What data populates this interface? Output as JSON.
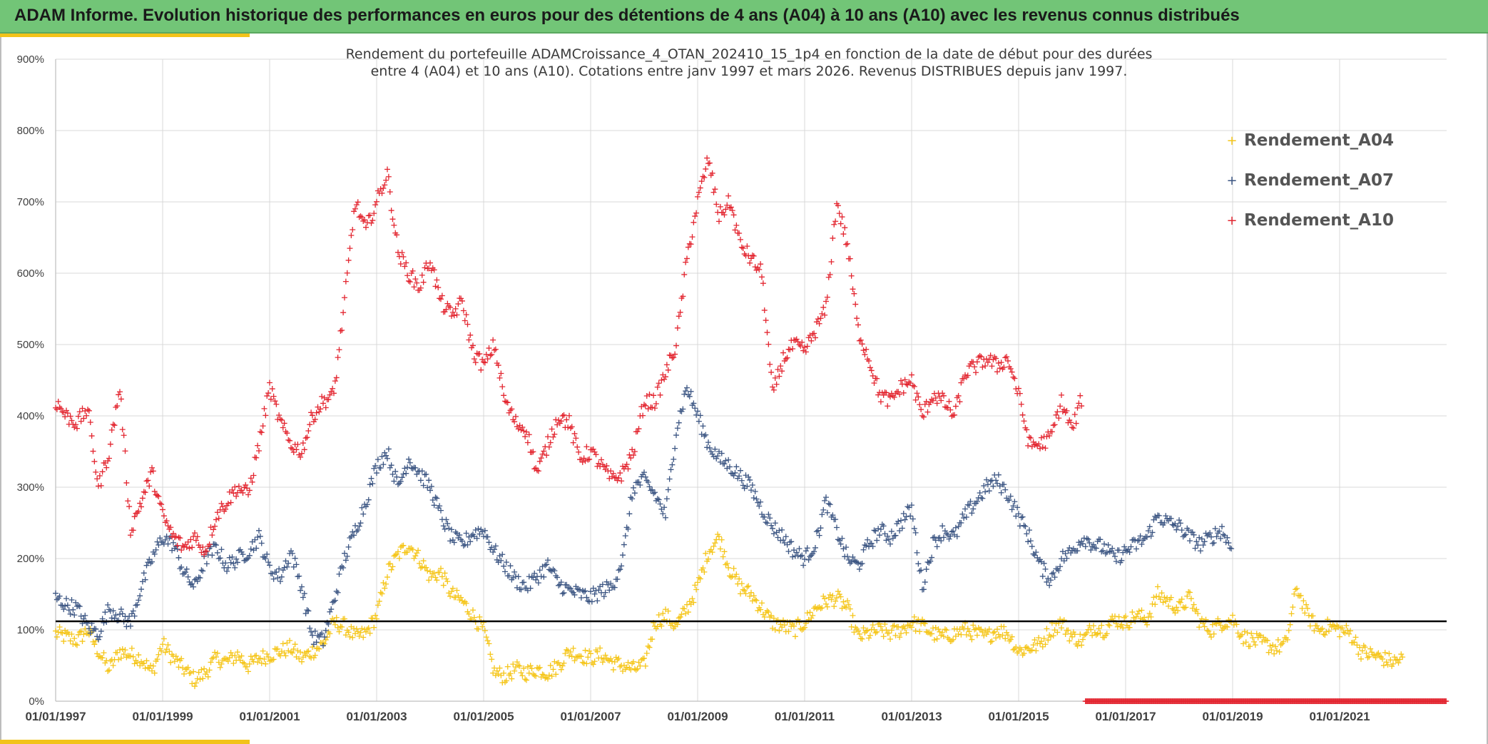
{
  "header": {
    "title": "ADAM Informe. Evolution historique des performances en euros pour des détentions de 4 ans (A04) à 10 ans (A10) avec les revenus connus distribués"
  },
  "chart_data": {
    "type": "scatter",
    "title_lines": [
      "Rendement du portefeuille ADAMCroissance_4_OTAN_202410_15_1p4  en fonction de la date de début pour des durées",
      "entre 4 (A04) et 10 ans (A10). Cotations entre janv 1997 et mars 2026. Revenus DISTRIBUES depuis janv 1997."
    ],
    "xlim": [
      1997.0,
      2023.0
    ],
    "ylim": [
      0,
      900
    ],
    "y_ticks": [
      0,
      100,
      200,
      300,
      400,
      500,
      600,
      700,
      800,
      900
    ],
    "y_tick_labels": [
      "0%",
      "100%",
      "200%",
      "300%",
      "400%",
      "500%",
      "600%",
      "700%",
      "800%",
      "900%"
    ],
    "x_ticks": [
      1997,
      1999,
      2001,
      2003,
      2005,
      2007,
      2009,
      2011,
      2013,
      2015,
      2017,
      2019,
      2021
    ],
    "x_tick_labels": [
      "01/01/1997",
      "01/01/1999",
      "01/01/2001",
      "01/01/2003",
      "01/01/2005",
      "01/01/2007",
      "01/01/2009",
      "01/01/2011",
      "01/01/2013",
      "01/01/2015",
      "01/01/2017",
      "01/01/2019",
      "01/01/2021"
    ],
    "grid": true,
    "reference_line": {
      "y": 112,
      "color": "#000000"
    },
    "legend_position": "top-right",
    "series": [
      {
        "name": "Rendement_A04",
        "color": "#f5c518",
        "x": [
          1997.0,
          1997.2,
          1997.4,
          1997.6,
          1997.8,
          1998.0,
          1998.2,
          1998.4,
          1998.6,
          1998.8,
          1999.0,
          1999.2,
          1999.4,
          1999.6,
          1999.8,
          2000.0,
          2000.2,
          2000.4,
          2000.6,
          2000.8,
          2001.0,
          2001.2,
          2001.4,
          2001.6,
          2001.8,
          2002.0,
          2002.2,
          2002.4,
          2002.6,
          2002.8,
          2003.0,
          2003.2,
          2003.4,
          2003.6,
          2003.8,
          2004.0,
          2004.2,
          2004.4,
          2004.6,
          2004.8,
          2005.0,
          2005.2,
          2005.4,
          2005.6,
          2005.8,
          2006.0,
          2006.2,
          2006.4,
          2006.6,
          2006.8,
          2007.0,
          2007.2,
          2007.4,
          2007.6,
          2007.8,
          2008.0,
          2008.2,
          2008.4,
          2008.6,
          2008.8,
          2009.0,
          2009.2,
          2009.4,
          2009.6,
          2009.8,
          2010.0,
          2010.2,
          2010.4,
          2010.6,
          2010.8,
          2011.0,
          2011.2,
          2011.4,
          2011.6,
          2011.8,
          2012.0,
          2012.2,
          2012.4,
          2012.6,
          2012.8,
          2013.0,
          2013.2,
          2013.4,
          2013.6,
          2013.8,
          2014.0,
          2014.2,
          2014.4,
          2014.6,
          2014.8,
          2015.0,
          2015.2,
          2015.4,
          2015.6,
          2015.8,
          2016.0,
          2016.2,
          2016.4,
          2016.6,
          2016.8,
          2017.0,
          2017.2,
          2017.4,
          2017.6,
          2017.8,
          2018.0,
          2018.2,
          2018.4,
          2018.6,
          2018.8,
          2019.0,
          2019.2,
          2019.4,
          2019.6,
          2019.8,
          2020.0,
          2020.2,
          2020.4,
          2020.6,
          2020.8,
          2021.0,
          2021.2,
          2021.4,
          2021.6,
          2021.8,
          2022.0,
          2022.2
        ],
        "values": [
          95,
          90,
          85,
          100,
          70,
          45,
          70,
          65,
          60,
          40,
          80,
          60,
          45,
          30,
          40,
          60,
          55,
          65,
          50,
          60,
          65,
          70,
          75,
          60,
          70,
          80,
          110,
          105,
          90,
          95,
          120,
          180,
          205,
          220,
          200,
          175,
          180,
          150,
          140,
          120,
          100,
          40,
          35,
          45,
          40,
          45,
          40,
          50,
          70,
          65,
          60,
          65,
          55,
          50,
          45,
          50,
          110,
          120,
          105,
          130,
          160,
          210,
          230,
          185,
          160,
          150,
          130,
          110,
          105,
          100,
          110,
          130,
          140,
          145,
          130,
          90,
          95,
          100,
          95,
          100,
          110,
          105,
          95,
          90,
          95,
          100,
          95,
          90,
          100,
          95,
          70,
          75,
          80,
          100,
          110,
          90,
          85,
          105,
          100,
          115,
          110,
          120,
          115,
          150,
          140,
          130,
          145,
          110,
          100,
          110,
          115,
          90,
          85,
          80,
          75,
          80,
          160,
          120,
          100,
          105,
          100,
          95,
          70,
          65,
          60,
          55,
          60
        ]
      },
      {
        "name": "Rendement_A07",
        "color": "#3c5683",
        "x": [
          1997.0,
          1997.2,
          1997.4,
          1997.6,
          1997.8,
          1998.0,
          1998.2,
          1998.4,
          1998.6,
          1998.8,
          1999.0,
          1999.2,
          1999.4,
          1999.6,
          1999.8,
          2000.0,
          2000.2,
          2000.4,
          2000.6,
          2000.8,
          2001.0,
          2001.2,
          2001.4,
          2001.6,
          2001.8,
          2002.0,
          2002.2,
          2002.4,
          2002.6,
          2002.8,
          2003.0,
          2003.2,
          2003.4,
          2003.6,
          2003.8,
          2004.0,
          2004.2,
          2004.4,
          2004.6,
          2004.8,
          2005.0,
          2005.2,
          2005.4,
          2005.6,
          2005.8,
          2006.0,
          2006.2,
          2006.4,
          2006.6,
          2006.8,
          2007.0,
          2007.2,
          2007.4,
          2007.6,
          2007.8,
          2008.0,
          2008.2,
          2008.4,
          2008.6,
          2008.8,
          2009.0,
          2009.2,
          2009.4,
          2009.6,
          2009.8,
          2010.0,
          2010.2,
          2010.4,
          2010.6,
          2010.8,
          2011.0,
          2011.2,
          2011.4,
          2011.6,
          2011.8,
          2012.0,
          2012.2,
          2012.4,
          2012.6,
          2012.8,
          2013.0,
          2013.2,
          2013.4,
          2013.6,
          2013.8,
          2014.0,
          2014.2,
          2014.4,
          2014.6,
          2014.8,
          2015.0,
          2015.2,
          2015.4,
          2015.6,
          2015.8,
          2016.0,
          2016.2,
          2016.4,
          2016.6,
          2016.8,
          2017.0,
          2017.2,
          2017.4,
          2017.6,
          2017.8,
          2018.0,
          2018.2,
          2018.4,
          2018.6,
          2018.8,
          2019.0
        ],
        "values": [
          145,
          135,
          130,
          105,
          95,
          130,
          120,
          110,
          160,
          200,
          230,
          220,
          180,
          160,
          200,
          215,
          190,
          200,
          210,
          230,
          185,
          175,
          210,
          160,
          90,
          85,
          140,
          200,
          240,
          280,
          330,
          350,
          300,
          340,
          320,
          300,
          260,
          230,
          220,
          235,
          240,
          210,
          190,
          170,
          160,
          175,
          190,
          165,
          155,
          150,
          145,
          155,
          160,
          200,
          300,
          310,
          290,
          260,
          380,
          440,
          400,
          360,
          340,
          330,
          315,
          300,
          270,
          245,
          230,
          210,
          200,
          220,
          280,
          240,
          200,
          190,
          220,
          240,
          230,
          250,
          270,
          160,
          220,
          240,
          230,
          260,
          280,
          300,
          310,
          290,
          260,
          230,
          190,
          170,
          200,
          210,
          230,
          220,
          215,
          200,
          210,
          220,
          230,
          260,
          250,
          245,
          230,
          220,
          230,
          240,
          210
        ]
      },
      {
        "name": "Rendement_A10",
        "color": "#e32630",
        "x": [
          1997.0,
          1997.2,
          1997.4,
          1997.6,
          1997.8,
          1998.0,
          1998.2,
          1998.4,
          1998.6,
          1998.8,
          1999.0,
          1999.2,
          1999.4,
          1999.6,
          1999.8,
          2000.0,
          2000.2,
          2000.4,
          2000.6,
          2000.8,
          2001.0,
          2001.2,
          2001.4,
          2001.6,
          2001.8,
          2002.0,
          2002.2,
          2002.4,
          2002.6,
          2002.8,
          2003.0,
          2003.2,
          2003.4,
          2003.6,
          2003.8,
          2004.0,
          2004.2,
          2004.4,
          2004.6,
          2004.8,
          2005.0,
          2005.2,
          2005.4,
          2005.6,
          2005.8,
          2006.0,
          2006.2,
          2006.4,
          2006.6,
          2006.8,
          2007.0,
          2007.2,
          2007.4,
          2007.6,
          2007.8,
          2008.0,
          2008.2,
          2008.4,
          2008.6,
          2008.8,
          2009.0,
          2009.2,
          2009.4,
          2009.6,
          2009.8,
          2010.0,
          2010.2,
          2010.4,
          2010.6,
          2010.8,
          2011.0,
          2011.2,
          2011.4,
          2011.6,
          2011.8,
          2012.0,
          2012.2,
          2012.4,
          2012.6,
          2012.8,
          2013.0,
          2013.2,
          2013.4,
          2013.6,
          2013.8,
          2014.0,
          2014.2,
          2014.4,
          2014.6,
          2014.8,
          2015.0,
          2015.2,
          2015.4,
          2015.6,
          2015.8,
          2016.0,
          2016.2
        ],
        "values": [
          420,
          400,
          390,
          410,
          300,
          350,
          440,
          240,
          280,
          320,
          260,
          230,
          215,
          230,
          210,
          260,
          280,
          300,
          290,
          360,
          440,
          390,
          360,
          350,
          400,
          420,
          430,
          560,
          700,
          660,
          700,
          740,
          630,
          600,
          580,
          620,
          560,
          540,
          560,
          490,
          470,
          500,
          420,
          390,
          380,
          320,
          360,
          400,
          390,
          340,
          350,
          330,
          310,
          320,
          350,
          420,
          420,
          460,
          500,
          620,
          700,
          760,
          680,
          700,
          640,
          620,
          600,
          430,
          480,
          500,
          490,
          520,
          550,
          700,
          640,
          520,
          480,
          430,
          420,
          440,
          450,
          400,
          430,
          420,
          400,
          460,
          470,
          480,
          470,
          480,
          430,
          360,
          360,
          370,
          420,
          380,
          430
        ]
      }
    ],
    "markers_baseline": {
      "x_start": 2016.25,
      "x_end": 2023.0,
      "y": 0,
      "color": "#e32630"
    }
  }
}
